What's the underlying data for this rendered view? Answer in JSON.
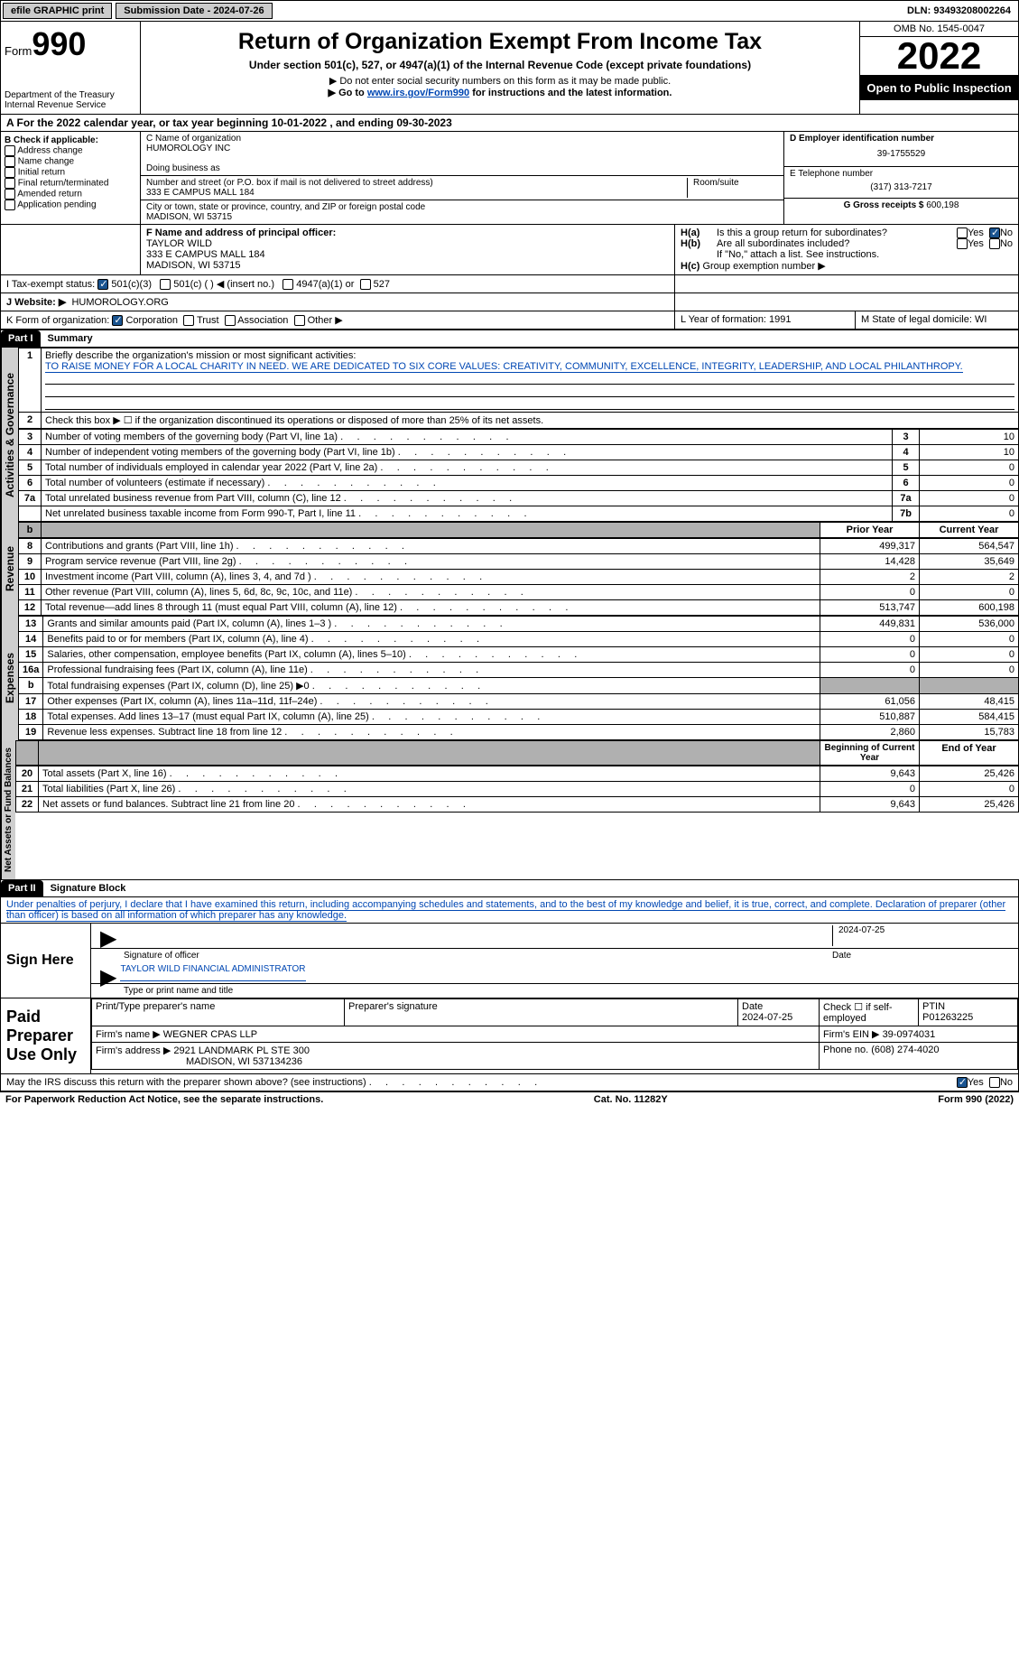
{
  "topbar": {
    "efile": "efile GRAPHIC print",
    "submission_label": "Submission Date - 2024-07-26",
    "dln_label": "DLN: 93493208002264"
  },
  "header": {
    "form_label": "Form",
    "form_num": "990",
    "dept": "Department of the Treasury",
    "irs": "Internal Revenue Service",
    "title": "Return of Organization Exempt From Income Tax",
    "subtitle": "Under section 501(c), 527, or 4947(a)(1) of the Internal Revenue Code (except private foundations)",
    "note1": "▶ Do not enter social security numbers on this form as it may be made public.",
    "note2_pre": "▶ Go to ",
    "note2_link": "www.irs.gov/Form990",
    "note2_post": " for instructions and the latest information.",
    "omb": "OMB No. 1545-0047",
    "year": "2022",
    "inspect": "Open to Public Inspection"
  },
  "sectionA": "A For the 2022 calendar year, or tax year beginning 10-01-2022    , and ending 09-30-2023",
  "sectionB": {
    "label": "B Check if applicable:",
    "items": [
      "Address change",
      "Name change",
      "Initial return",
      "Final return/terminated",
      "Amended return",
      "Application pending"
    ]
  },
  "sectionC": {
    "name_lbl": "C Name of organization",
    "name": "HUMOROLOGY INC",
    "dba_lbl": "Doing business as",
    "street_lbl": "Number and street (or P.O. box if mail is not delivered to street address)",
    "street": "333 E CAMPUS MALL 184",
    "room_lbl": "Room/suite",
    "city_lbl": "City or town, state or province, country, and ZIP or foreign postal code",
    "city": "MADISON, WI  53715"
  },
  "sectionD": {
    "lbl": "D Employer identification number",
    "val": "39-1755529"
  },
  "sectionE": {
    "lbl": "E Telephone number",
    "val": "(317) 313-7217"
  },
  "sectionG": {
    "lbl": "G Gross receipts $",
    "val": "600,198"
  },
  "sectionF": {
    "lbl": "F  Name and address of principal officer:",
    "name": "TAYLOR WILD",
    "street": "333 E CAMPUS MALL 184",
    "city": "MADISON, WI  53715"
  },
  "sectionH": {
    "a_lbl": "Is this a group return for subordinates?",
    "b_lbl": "Are all subordinates included?",
    "note": "If \"No,\" attach a list. See instructions.",
    "c_lbl": "Group exemption number ▶",
    "yes": "Yes",
    "no": "No",
    "ha": "H(a)",
    "hb": "H(b)",
    "hc": "H(c)"
  },
  "sectionI": {
    "lbl": "I    Tax-exempt status:",
    "opts": [
      "501(c)(3)",
      "501(c) (  ) ◀ (insert no.)",
      "4947(a)(1) or",
      "527"
    ]
  },
  "sectionJ": {
    "lbl": "J    Website: ▶",
    "val": "HUMOROLOGY.ORG"
  },
  "sectionK": {
    "lbl": "K Form of organization:",
    "opts": [
      "Corporation",
      "Trust",
      "Association",
      "Other ▶"
    ]
  },
  "sectionL": {
    "lbl": "L Year of formation: 1991"
  },
  "sectionM": {
    "lbl": "M State of legal domicile: WI"
  },
  "part1": {
    "hdr": "Part I",
    "title": "Summary",
    "line1_lbl": "Briefly describe the organization's mission or most significant activities:",
    "mission": "TO RAISE MONEY FOR A LOCAL CHARITY IN NEED. WE ARE DEDICATED TO SIX CORE VALUES: CREATIVITY, COMMUNITY, EXCELLENCE, INTEGRITY, LEADERSHIP, AND LOCAL PHILANTHROPY.",
    "line2": "Check this box ▶ ☐  if the organization discontinued its operations or disposed of more than 25% of its net assets.",
    "governance_label": "Activities & Governance",
    "revenue_label": "Revenue",
    "expenses_label": "Expenses",
    "netassets_label": "Net Assets or Fund Balances",
    "rows_gov": [
      {
        "n": "3",
        "t": "Number of voting members of the governing body (Part VI, line 1a)",
        "box": "3",
        "v": "10"
      },
      {
        "n": "4",
        "t": "Number of independent voting members of the governing body (Part VI, line 1b)",
        "box": "4",
        "v": "10"
      },
      {
        "n": "5",
        "t": "Total number of individuals employed in calendar year 2022 (Part V, line 2a)",
        "box": "5",
        "v": "0"
      },
      {
        "n": "6",
        "t": "Total number of volunteers (estimate if necessary)",
        "box": "6",
        "v": "0"
      },
      {
        "n": "7a",
        "t": "Total unrelated business revenue from Part VIII, column (C), line 12",
        "box": "7a",
        "v": "0"
      },
      {
        "n": "",
        "t": "Net unrelated business taxable income from Form 990-T, Part I, line 11",
        "box": "7b",
        "v": "0"
      }
    ],
    "col_prior": "Prior Year",
    "col_current": "Current Year",
    "rows_rev": [
      {
        "n": "8",
        "t": "Contributions and grants (Part VIII, line 1h)",
        "p": "499,317",
        "c": "564,547"
      },
      {
        "n": "9",
        "t": "Program service revenue (Part VIII, line 2g)",
        "p": "14,428",
        "c": "35,649"
      },
      {
        "n": "10",
        "t": "Investment income (Part VIII, column (A), lines 3, 4, and 7d )",
        "p": "2",
        "c": "2"
      },
      {
        "n": "11",
        "t": "Other revenue (Part VIII, column (A), lines 5, 6d, 8c, 9c, 10c, and 11e)",
        "p": "0",
        "c": "0"
      },
      {
        "n": "12",
        "t": "Total revenue—add lines 8 through 11 (must equal Part VIII, column (A), line 12)",
        "p": "513,747",
        "c": "600,198"
      }
    ],
    "rows_exp": [
      {
        "n": "13",
        "t": "Grants and similar amounts paid (Part IX, column (A), lines 1–3 )",
        "p": "449,831",
        "c": "536,000"
      },
      {
        "n": "14",
        "t": "Benefits paid to or for members (Part IX, column (A), line 4)",
        "p": "0",
        "c": "0"
      },
      {
        "n": "15",
        "t": "Salaries, other compensation, employee benefits (Part IX, column (A), lines 5–10)",
        "p": "0",
        "c": "0"
      },
      {
        "n": "16a",
        "t": "Professional fundraising fees (Part IX, column (A), line 11e)",
        "p": "0",
        "c": "0"
      },
      {
        "n": "b",
        "t": "Total fundraising expenses (Part IX, column (D), line 25) ▶0",
        "p": "",
        "c": "",
        "shaded": true
      },
      {
        "n": "17",
        "t": "Other expenses (Part IX, column (A), lines 11a–11d, 11f–24e)",
        "p": "61,056",
        "c": "48,415"
      },
      {
        "n": "18",
        "t": "Total expenses. Add lines 13–17 (must equal Part IX, column (A), line 25)",
        "p": "510,887",
        "c": "584,415"
      },
      {
        "n": "19",
        "t": "Revenue less expenses. Subtract line 18 from line 12",
        "p": "2,860",
        "c": "15,783"
      }
    ],
    "col_begin": "Beginning of Current Year",
    "col_end": "End of Year",
    "rows_net": [
      {
        "n": "20",
        "t": "Total assets (Part X, line 16)",
        "p": "9,643",
        "c": "25,426"
      },
      {
        "n": "21",
        "t": "Total liabilities (Part X, line 26)",
        "p": "0",
        "c": "0"
      },
      {
        "n": "22",
        "t": "Net assets or fund balances. Subtract line 21 from line 20",
        "p": "9,643",
        "c": "25,426"
      }
    ]
  },
  "part2": {
    "hdr": "Part II",
    "title": "Signature Block",
    "decl": "Under penalties of perjury, I declare that I have examined this return, including accompanying schedules and statements, and to the best of my knowledge and belief, it is true, correct, and complete. Declaration of preparer (other than officer) is based on all information of which preparer has any knowledge.",
    "sign_here": "Sign Here",
    "sig_officer": "Signature of officer",
    "sig_date": "2024-07-25",
    "date_lbl": "Date",
    "officer_name": "TAYLOR WILD  FINANCIAL ADMINISTRATOR",
    "type_name": "Type or print name and title",
    "paid_prep": "Paid Preparer Use Only",
    "prep_name_lbl": "Print/Type preparer's name",
    "prep_sig_lbl": "Preparer's signature",
    "prep_date": "2024-07-25",
    "check_if": "Check ☐ if self-employed",
    "ptin_lbl": "PTIN",
    "ptin": "P01263225",
    "firm_name_lbl": "Firm's name      ▶",
    "firm_name": "WEGNER CPAS LLP",
    "firm_ein_lbl": "Firm's EIN ▶",
    "firm_ein": "39-0974031",
    "firm_addr_lbl": "Firm's address ▶",
    "firm_addr1": "2921 LANDMARK PL STE 300",
    "firm_addr2": "MADISON, WI  537134236",
    "phone_lbl": "Phone no.",
    "phone": "(608) 274-4020",
    "discuss": "May the IRS discuss this return with the preparer shown above? (see instructions)",
    "yes": "Yes",
    "no": "No"
  },
  "footer": {
    "left": "For Paperwork Reduction Act Notice, see the separate instructions.",
    "mid": "Cat. No. 11282Y",
    "right": "Form 990 (2022)"
  }
}
